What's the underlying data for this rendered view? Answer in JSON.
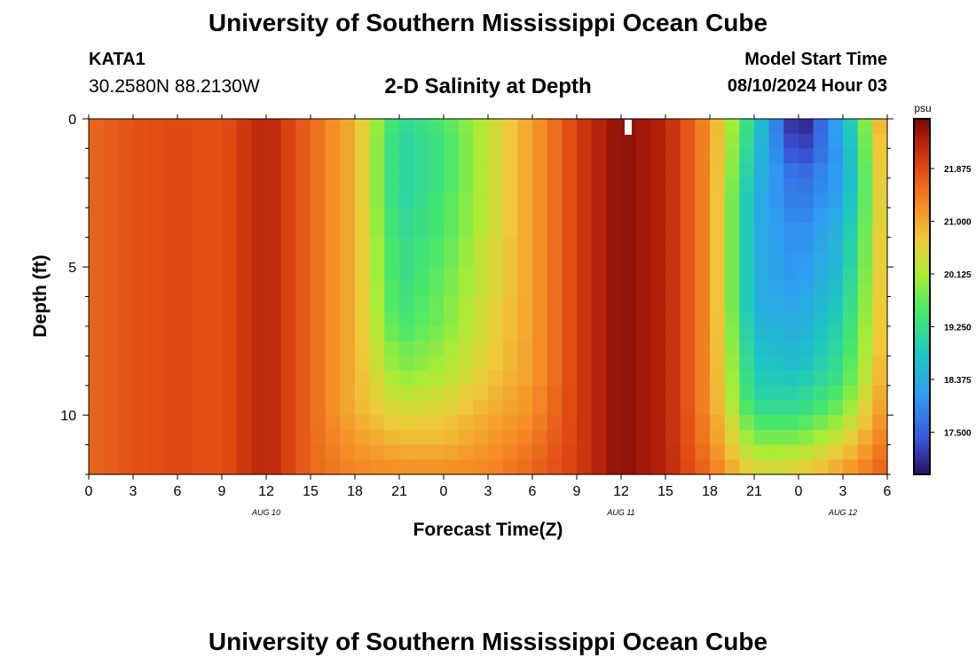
{
  "header": {
    "title": "University of Southern Mississippi Ocean Cube",
    "station_id": "KATA1",
    "station_coords": "30.2580N  88.2130W",
    "plot_title": "2-D Salinity at Depth",
    "model_start_label": "Model Start Time",
    "model_start_value": "08/10/2024 Hour 03"
  },
  "footer": {
    "title": "University of Southern Mississippi Ocean Cube"
  },
  "chart_data": {
    "type": "heatmap",
    "title": "2-D Salinity at Depth",
    "xlabel": "Forecast Time(Z)",
    "ylabel": "Depth (ft)",
    "x_tick_labels": [
      "0",
      "3",
      "6",
      "9",
      "12",
      "15",
      "18",
      "21",
      "0",
      "3",
      "6",
      "9",
      "12",
      "15",
      "18",
      "21",
      "0",
      "3",
      "6"
    ],
    "date_labels": [
      {
        "label": "AUG 10",
        "at_tick": 4
      },
      {
        "label": "AUG 11",
        "at_tick": 12
      },
      {
        "label": "AUG 12",
        "at_tick": 17
      }
    ],
    "y_ticks": [
      0,
      5,
      10
    ],
    "ylim": [
      0,
      12
    ],
    "depth_rows": [
      0,
      0.5,
      1,
      1.5,
      2,
      2.5,
      3,
      3.5,
      4,
      4.5,
      5,
      5.5,
      6,
      6.5,
      7,
      7.5,
      8,
      8.5,
      9,
      9.5,
      10,
      10.5,
      11,
      11.5
    ],
    "time_hours": [
      0,
      3,
      6,
      9,
      12,
      15,
      18,
      21,
      24,
      27,
      30,
      33,
      36,
      39,
      42,
      45,
      48,
      51,
      54
    ],
    "salinity_psu_grid": [
      [
        21.6,
        21.8,
        21.9,
        21.8,
        22.3,
        21.6,
        20.9,
        19.1,
        19.5,
        20.3,
        21.1,
        22.0,
        22.6,
        22.3,
        21.2,
        18.9,
        16.8,
        18.4,
        21.3
      ],
      [
        21.6,
        21.8,
        21.9,
        21.8,
        22.3,
        21.6,
        20.9,
        19.0,
        19.4,
        20.3,
        21.1,
        22.0,
        22.6,
        22.3,
        21.2,
        18.8,
        17.0,
        18.3,
        21.2
      ],
      [
        21.6,
        21.8,
        21.9,
        21.8,
        22.3,
        21.6,
        20.9,
        19.0,
        19.4,
        20.3,
        21.1,
        22.0,
        22.6,
        22.3,
        21.2,
        18.7,
        17.2,
        18.2,
        21.2
      ],
      [
        21.6,
        21.8,
        21.9,
        21.8,
        22.3,
        21.6,
        20.9,
        19.0,
        19.4,
        20.3,
        21.1,
        22.0,
        22.6,
        22.3,
        21.2,
        18.6,
        17.5,
        18.2,
        21.1
      ],
      [
        21.6,
        21.8,
        21.9,
        21.8,
        22.3,
        21.6,
        20.9,
        19.0,
        19.4,
        20.3,
        21.1,
        22.0,
        22.6,
        22.3,
        21.2,
        18.5,
        17.6,
        18.2,
        21.1
      ],
      [
        21.6,
        21.8,
        21.9,
        21.8,
        22.3,
        21.6,
        20.9,
        19.0,
        19.5,
        20.3,
        21.1,
        22.0,
        22.6,
        22.3,
        21.2,
        18.4,
        17.7,
        18.3,
        21.0
      ],
      [
        21.6,
        21.8,
        21.9,
        21.8,
        22.3,
        21.6,
        20.9,
        19.1,
        19.5,
        20.3,
        21.1,
        22.0,
        22.6,
        22.3,
        21.2,
        18.4,
        17.8,
        18.4,
        21.0
      ],
      [
        21.6,
        21.8,
        21.9,
        21.8,
        22.3,
        21.6,
        20.9,
        19.1,
        19.5,
        20.3,
        21.1,
        22.0,
        22.6,
        22.3,
        21.2,
        18.4,
        17.9,
        18.5,
        21.0
      ],
      [
        21.6,
        21.8,
        21.9,
        21.8,
        22.3,
        21.6,
        20.9,
        19.2,
        19.6,
        20.4,
        21.1,
        22.0,
        22.6,
        22.3,
        21.2,
        18.4,
        17.9,
        18.6,
        21.0
      ],
      [
        21.6,
        21.8,
        21.9,
        21.8,
        22.3,
        21.6,
        20.9,
        19.2,
        19.6,
        20.4,
        21.1,
        22.0,
        22.6,
        22.3,
        21.2,
        18.4,
        18.0,
        18.6,
        21.0
      ],
      [
        21.6,
        21.8,
        21.9,
        21.8,
        22.3,
        21.6,
        20.9,
        19.2,
        19.7,
        20.4,
        21.1,
        22.0,
        22.6,
        22.3,
        21.2,
        18.4,
        18.0,
        18.7,
        21.0
      ],
      [
        21.6,
        21.8,
        21.9,
        21.8,
        22.3,
        21.6,
        20.9,
        19.3,
        19.7,
        20.4,
        21.1,
        22.0,
        22.6,
        22.3,
        21.2,
        18.4,
        18.1,
        18.8,
        21.0
      ],
      [
        21.6,
        21.8,
        21.9,
        21.8,
        22.3,
        21.6,
        20.9,
        19.3,
        19.8,
        20.5,
        21.1,
        22.0,
        22.6,
        22.3,
        21.2,
        18.4,
        18.2,
        18.9,
        21.0
      ],
      [
        21.6,
        21.8,
        21.9,
        21.8,
        22.3,
        21.6,
        20.9,
        19.4,
        19.8,
        20.5,
        21.1,
        22.0,
        22.6,
        22.3,
        21.2,
        18.5,
        18.3,
        19.0,
        21.0
      ],
      [
        21.6,
        21.8,
        21.9,
        21.8,
        22.3,
        21.6,
        20.9,
        19.5,
        19.9,
        20.5,
        21.1,
        22.0,
        22.6,
        22.3,
        21.2,
        18.6,
        18.4,
        19.1,
        21.0
      ],
      [
        21.6,
        21.8,
        21.9,
        21.8,
        22.3,
        21.6,
        20.9,
        19.7,
        20.0,
        20.6,
        21.1,
        22.0,
        22.6,
        22.3,
        21.2,
        18.7,
        18.5,
        19.2,
        21.0
      ],
      [
        21.6,
        21.8,
        21.9,
        21.8,
        22.3,
        21.6,
        20.9,
        19.8,
        20.1,
        20.6,
        21.1,
        22.0,
        22.6,
        22.3,
        21.2,
        18.8,
        18.6,
        19.3,
        21.1
      ],
      [
        21.6,
        21.8,
        21.9,
        21.8,
        22.3,
        21.6,
        20.9,
        20.0,
        20.2,
        20.7,
        21.1,
        22.0,
        22.6,
        22.3,
        21.2,
        18.9,
        18.8,
        19.4,
        21.1
      ],
      [
        21.6,
        21.8,
        21.9,
        21.8,
        22.3,
        21.6,
        20.9,
        20.2,
        20.4,
        20.8,
        21.2,
        22.0,
        22.6,
        22.3,
        21.2,
        19.0,
        19.0,
        19.6,
        21.2
      ],
      [
        21.6,
        21.8,
        21.9,
        21.8,
        22.3,
        21.6,
        20.9,
        20.4,
        20.5,
        20.9,
        21.2,
        22.0,
        22.6,
        22.3,
        21.2,
        19.2,
        19.2,
        19.8,
        21.3
      ],
      [
        21.6,
        21.8,
        21.9,
        21.8,
        22.3,
        21.6,
        21.0,
        20.6,
        20.7,
        21.0,
        21.3,
        22.0,
        22.6,
        22.3,
        21.3,
        19.5,
        19.5,
        20.1,
        21.4
      ],
      [
        21.6,
        21.8,
        21.9,
        21.8,
        22.3,
        21.6,
        21.1,
        20.8,
        20.8,
        21.1,
        21.4,
        22.0,
        22.6,
        22.3,
        21.3,
        19.8,
        19.8,
        20.4,
        21.5
      ],
      [
        21.6,
        21.8,
        21.9,
        21.8,
        22.3,
        21.6,
        21.2,
        21.0,
        21.0,
        21.2,
        21.5,
        22.0,
        22.6,
        22.3,
        21.4,
        20.1,
        20.2,
        20.7,
        21.6
      ],
      [
        21.6,
        21.8,
        21.9,
        21.8,
        22.3,
        21.6,
        21.3,
        21.2,
        21.2,
        21.3,
        21.6,
        22.0,
        22.6,
        22.3,
        21.5,
        20.4,
        20.5,
        21.0,
        21.7
      ]
    ],
    "colorbar": {
      "unit": "psu",
      "range": [
        16.8,
        22.7
      ],
      "tick_labels": [
        "21.875",
        "21.000",
        "20.125",
        "19.250",
        "18.375",
        "17.500"
      ],
      "stops": [
        {
          "at": 0.0,
          "color": "#2a1060"
        },
        {
          "at": 0.1,
          "color": "#3a55d8"
        },
        {
          "at": 0.22,
          "color": "#2f9cf2"
        },
        {
          "at": 0.34,
          "color": "#1ec8c0"
        },
        {
          "at": 0.46,
          "color": "#49e86a"
        },
        {
          "at": 0.56,
          "color": "#a8ec36"
        },
        {
          "at": 0.66,
          "color": "#f0c83a"
        },
        {
          "at": 0.76,
          "color": "#f58a25"
        },
        {
          "at": 0.86,
          "color": "#e04a14"
        },
        {
          "at": 0.94,
          "color": "#b0200a"
        },
        {
          "at": 1.0,
          "color": "#780806"
        }
      ]
    }
  }
}
